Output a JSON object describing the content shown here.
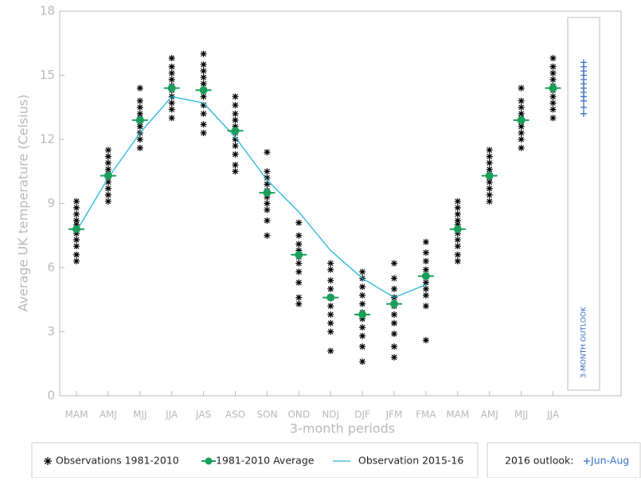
{
  "chart_data": {
    "type": "scatter",
    "x_label": "3-month periods",
    "y_label": "Average UK temperature (Celsius)",
    "categories": [
      "MAM",
      "AMJ",
      "MJJ",
      "JJA",
      "JAS",
      "ASO",
      "SON",
      "OND",
      "NDJ",
      "DJF",
      "JFM",
      "FMA",
      "MAM",
      "AMJ",
      "MJJ",
      "JJA"
    ],
    "ylim": [
      0,
      18
    ],
    "yticks": [
      0,
      3,
      6,
      9,
      12,
      15,
      18
    ],
    "series": [
      {
        "name": "Observations 1981-2010",
        "color": "#000000",
        "values": [
          [
            6.3,
            6.6,
            7.0,
            7.3,
            7.6,
            7.8,
            8.0,
            8.2,
            8.5,
            8.8,
            9.1
          ],
          [
            9.1,
            9.4,
            9.7,
            10.0,
            10.2,
            10.4,
            10.6,
            10.9,
            11.2,
            11.5
          ],
          [
            11.6,
            12.0,
            12.3,
            12.6,
            12.8,
            13.0,
            13.2,
            13.5,
            13.8,
            14.4
          ],
          [
            13.0,
            13.4,
            13.7,
            14.0,
            14.3,
            14.5,
            14.8,
            15.1,
            15.4,
            15.8
          ],
          [
            12.3,
            12.7,
            13.2,
            13.6,
            14.0,
            14.3,
            14.6,
            14.9,
            15.2,
            15.5,
            16.0
          ],
          [
            10.5,
            10.8,
            11.3,
            11.7,
            12.0,
            12.3,
            12.6,
            12.9,
            13.2,
            13.6,
            14.0
          ],
          [
            7.5,
            8.2,
            8.7,
            9.0,
            9.3,
            9.6,
            9.9,
            10.2,
            10.5,
            11.4
          ],
          [
            4.3,
            4.6,
            5.3,
            5.8,
            6.2,
            6.5,
            6.8,
            7.1,
            7.5,
            8.1
          ],
          [
            2.1,
            3.0,
            3.4,
            3.8,
            4.2,
            4.6,
            5.0,
            5.4,
            5.9,
            6.2
          ],
          [
            1.6,
            2.3,
            2.8,
            3.2,
            3.6,
            3.9,
            4.3,
            4.7,
            5.1,
            5.5,
            5.8
          ],
          [
            1.8,
            2.3,
            2.9,
            3.4,
            3.8,
            4.2,
            4.6,
            5.0,
            5.5,
            6.2
          ],
          [
            2.6,
            4.2,
            4.7,
            5.0,
            5.3,
            5.6,
            5.9,
            6.3,
            6.7,
            7.2
          ],
          [
            6.3,
            6.6,
            7.0,
            7.3,
            7.6,
            7.8,
            8.0,
            8.2,
            8.5,
            8.8,
            9.1
          ],
          [
            9.1,
            9.4,
            9.7,
            10.0,
            10.2,
            10.4,
            10.6,
            10.9,
            11.2,
            11.5
          ],
          [
            11.6,
            12.0,
            12.3,
            12.6,
            12.8,
            13.0,
            13.2,
            13.5,
            13.8,
            14.4
          ],
          [
            13.0,
            13.4,
            13.7,
            14.0,
            14.3,
            14.5,
            14.8,
            15.1,
            15.4,
            15.8
          ]
        ]
      },
      {
        "name": "1981-2010 Average",
        "color": "#1a9e5a",
        "values": [
          7.8,
          10.3,
          12.9,
          14.4,
          14.3,
          12.4,
          9.5,
          6.6,
          4.6,
          3.8,
          4.3,
          5.6,
          7.8,
          10.3,
          12.9,
          14.4
        ]
      },
      {
        "name": "Observation 2015-16",
        "color": "#22b6d8",
        "values": [
          7.7,
          10.2,
          12.3,
          14.0,
          13.7,
          12.1,
          10.1,
          8.6,
          6.8,
          5.5,
          4.6,
          5.2,
          null,
          null,
          null,
          null
        ]
      }
    ],
    "outlook": {
      "label": "2016 outlook:",
      "name": "Jun-Aug",
      "panel_label": "3-MONTH OUTLOOK",
      "color": "#3a6fc4",
      "values": [
        13.2,
        13.5,
        13.8,
        14.0,
        14.2,
        14.4,
        14.6,
        14.8,
        15.0,
        15.2,
        15.4,
        15.6
      ]
    }
  }
}
